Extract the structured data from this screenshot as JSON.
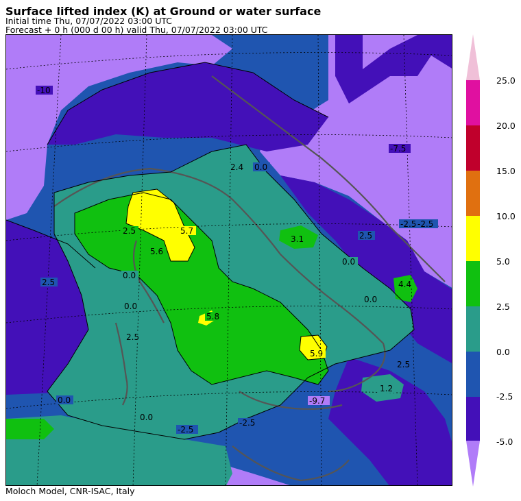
{
  "header": {
    "title": "Surface lifted index (K) at Ground or water surface",
    "initial_time": "Initial time  Thu, 07/07/2022  03:00 UTC",
    "forecast": "Forecast  +   0 h  (000 d 00 h)  valid Thu, 07/07/2022 03:00 UTC"
  },
  "footer": {
    "credit": "Moloch Model, CNR-ISAC, Italy"
  },
  "legend": {
    "ticks": [
      "25.0",
      "20.0",
      "15.0",
      "10.0",
      "5.0",
      "2.5",
      "0.0",
      "-2.5",
      "-5.0"
    ],
    "colors": {
      "above_25": "#f0c0d8",
      "b20_25": "#e010a0",
      "b15_20": "#c0002c",
      "b10_15": "#e07010",
      "b5_10": "#ffff00",
      "b2_5_5": "#10c010",
      "b0_2_5": "#2a9c8a",
      "bm2_5_0": "#1f55b0",
      "bm5_m2_5": "#4310b8",
      "below_m5": "#b07cf8"
    }
  },
  "map": {
    "contour_labels": [
      {
        "text": "-10",
        "color": "#4310b8"
      },
      {
        "text": "2.4",
        "color": "#2a9c8a"
      },
      {
        "text": "0.0",
        "color": "#1f55b0"
      },
      {
        "text": "-7.5",
        "color": "#4310b8"
      },
      {
        "text": "5.7",
        "color": "#ffff00"
      },
      {
        "text": "2.5",
        "color": "#10c010"
      },
      {
        "text": "5.6",
        "color": "#10c010"
      },
      {
        "text": "0.0",
        "color": "#2a9c8a"
      },
      {
        "text": "3.1",
        "color": "#10c010"
      },
      {
        "text": "2.5",
        "color": "#1f55b0"
      },
      {
        "text": "0.0",
        "color": "#2a9c8a"
      },
      {
        "text": "4.4",
        "color": "#10c010"
      },
      {
        "text": "0.0",
        "color": "#2a9c8a"
      },
      {
        "text": "-2.5",
        "color": "#1f55b0"
      },
      {
        "text": "-2.5",
        "color": "#1f55b0"
      },
      {
        "text": "5.8",
        "color": "#10c010"
      },
      {
        "text": "5.9",
        "color": "#ffff00"
      },
      {
        "text": "0.0",
        "color": "#2a9c8a"
      },
      {
        "text": "-2.5",
        "color": "#1f55b0"
      },
      {
        "text": "1.2",
        "color": "#2a9c8a"
      },
      {
        "text": "-9.7",
        "color": "#b07cf8"
      },
      {
        "text": "0.0",
        "color": "#1f55b0"
      },
      {
        "text": "0.0",
        "color": "#2a9c8a"
      },
      {
        "text": "-2.5",
        "color": "#1f55b0"
      },
      {
        "text": "2.5",
        "color": "#1f55b0"
      },
      {
        "text": "2.5",
        "color": "#2a9c8a"
      },
      {
        "text": "2.5",
        "color": "#1f55b0"
      }
    ]
  }
}
